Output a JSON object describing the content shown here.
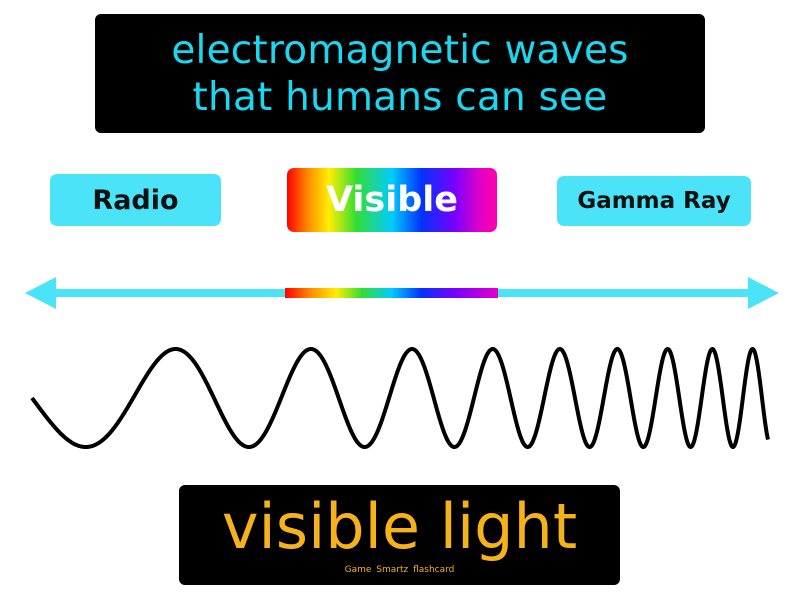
{
  "definition": {
    "line1": "electromagnetic waves",
    "line2": "that humans can see"
  },
  "spectrum_labels": {
    "radio": "Radio",
    "visible": "Visible",
    "gamma": "Gamma Ray"
  },
  "term": "visible light",
  "brand": "Game Smartz flashcard",
  "colors": {
    "accent_cyan": "#1ad8f1",
    "term_gold": "#f5b21b",
    "box_black": "#000000",
    "wave_black": "#000000"
  },
  "icons": [
    "left-arrowhead-icon",
    "right-arrowhead-icon"
  ]
}
